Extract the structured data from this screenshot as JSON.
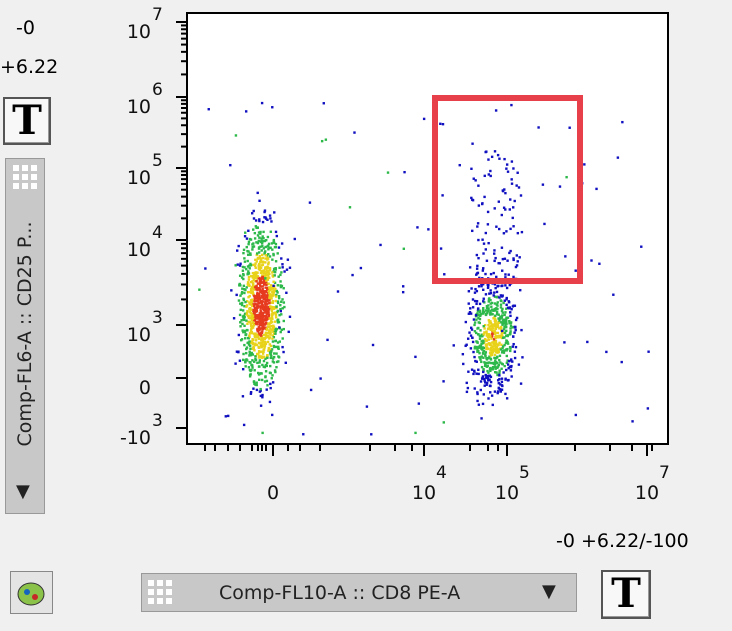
{
  "range_min": "-0",
  "range_max": "+6.22",
  "text_button": "T",
  "y_axis_selector": "Comp-FL6-A :: CD25 P...",
  "x_axis_selector": "Comp-FL10-A :: CD8 PE-A",
  "scale_label": "-0 +6.22/-100",
  "plot": {
    "y_ticks": [
      {
        "base": "10",
        "exp": "7"
      },
      {
        "base": "10",
        "exp": "6"
      },
      {
        "base": "10",
        "exp": "5"
      },
      {
        "base": "10",
        "exp": "4"
      },
      {
        "base": "10",
        "exp": "3"
      },
      {
        "base": "0"
      },
      {
        "base": "-10",
        "exp": "3"
      }
    ],
    "x_ticks": [
      {
        "base": "0"
      },
      {
        "base": "10",
        "exp": "4"
      },
      {
        "base": "10",
        "exp": "5"
      },
      {
        "base": "10",
        "exp": "7"
      }
    ]
  }
}
